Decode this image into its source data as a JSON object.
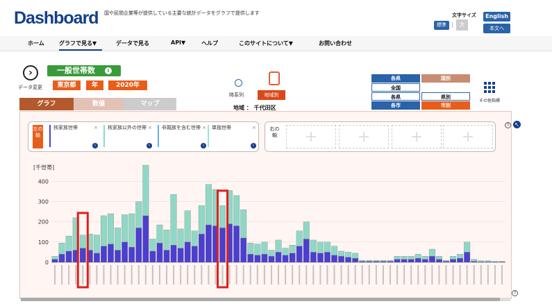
{
  "header": {
    "logo": "Dashboard",
    "tagline": "国や民間企業等が提供している主要な統計データをグラフで提供します",
    "font_size_label": "文字サイズ",
    "font_std": "標準",
    "font_sep": "|",
    "font_large": "大",
    "english": "English",
    "to_body": "本文へ"
  },
  "nav": [
    "ホーム",
    "グラフで見る▼",
    "データで見る",
    "API▼",
    "ヘルプ",
    "このサイトについて▼",
    "お問い合わせ"
  ],
  "controls": {
    "data_change": "データ変更",
    "title": "一般世帯数",
    "badges": [
      "東京都",
      "年",
      "2020年"
    ],
    "tabs": [
      "グラフ",
      "数値",
      "マップ"
    ],
    "timeseries": "時系列",
    "regional": "地域別",
    "region": "地域 ： 千代田区",
    "selectors": {
      "kakuken": "各県",
      "zenkoku": "全国",
      "kakuken2": "各県",
      "kakushi": "各市",
      "kokubetsu": "国別",
      "kenbetsu": "県別",
      "shibetsu": "市別",
      "kakkoku": "各国"
    },
    "other_indicators": "その他指標"
  },
  "legend": {
    "left_axis": "左の軸",
    "right_axis": "右の軸",
    "items": [
      {
        "label": "核家族世帯",
        "color": "#4b3fcf"
      },
      {
        "label": "核家族以外の世帯",
        "color": "#8fd8c6"
      },
      {
        "label": "非親族を含む世帯",
        "color": "#6ab0e6"
      },
      {
        "label": "単独世帯",
        "color": "#9fe0d8"
      }
    ]
  },
  "chart_data": {
    "type": "bar",
    "stacked": true,
    "ylabel": "[千世帯]",
    "ylim": [
      0,
      480
    ],
    "yticks": [
      0,
      100,
      200,
      300,
      400
    ],
    "series": [
      {
        "name": "核家族世帯",
        "color": "#4b3fcf",
        "values": [
          15,
          40,
          55,
          60,
          70,
          60,
          45,
          80,
          90,
          60,
          100,
          75,
          170,
          230,
          55,
          95,
          60,
          85,
          70,
          100,
          80,
          140,
          185,
          180,
          170,
          190,
          180,
          120,
          40,
          35,
          40,
          30,
          50,
          35,
          45,
          80,
          115,
          50,
          45,
          50,
          35,
          30,
          25,
          20,
          5,
          5,
          5,
          5,
          5,
          15,
          15,
          15,
          20,
          15,
          30,
          15,
          5,
          15,
          20,
          50,
          5,
          3,
          3,
          2,
          2
        ]
      },
      {
        "name": "核家族以外の世帯",
        "color": "#8fd8c6",
        "values": [
          15,
          55,
          75,
          160,
          65,
          80,
          90,
          150,
          150,
          110,
          135,
          165,
          130,
          250,
          60,
          90,
          100,
          250,
          95,
          155,
          75,
          140,
          200,
          180,
          110,
          165,
          150,
          140,
          55,
          55,
          60,
          30,
          60,
          35,
          40,
          75,
          85,
          60,
          55,
          50,
          45,
          25,
          25,
          25,
          5,
          5,
          5,
          5,
          5,
          15,
          15,
          15,
          20,
          15,
          35,
          15,
          5,
          15,
          20,
          50,
          10,
          5,
          5,
          3,
          3
        ]
      }
    ]
  }
}
